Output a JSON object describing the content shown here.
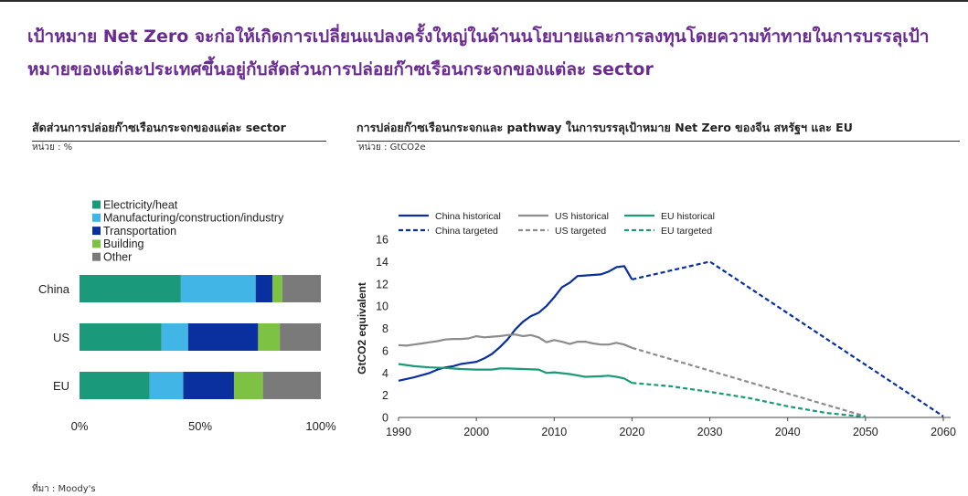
{
  "headline": "เป้าหมาย Net Zero จะก่อให้เกิดการเปลี่ยนแปลงครั้งใหญ่ในด้านนโยบายและการลงทุนโดยความท้าทายในการบรรลุเป้าหมายของแต่ละประเทศขึ้นอยู่กับสัดส่วนการปล่อยก๊าซเรือนกระจกของแต่ละ sector",
  "left_panel": {
    "title": "สัดส่วนการปล่อยก๊าซเรือนกระจกของแต่ละ sector",
    "unit": "หน่วย : %"
  },
  "right_panel": {
    "title": "การปล่อยก๊าซเรือนกระจกและ pathway ในการบรรลุเป้าหมาย Net Zero ของจีน สหรัฐฯ และ EU",
    "unit": "หน่วย : GtCO2e"
  },
  "source": "ที่มา : Moody's",
  "chart_data": [
    {
      "type": "bar",
      "orientation": "horizontal",
      "stacked": true,
      "categories": [
        "China",
        "US",
        "EU"
      ],
      "series": [
        {
          "name": "Electricity/heat",
          "color": "#1a9a7a",
          "values": [
            42,
            34,
            29
          ]
        },
        {
          "name": "Manufacturing/construction/industry",
          "color": "#41b6e6",
          "values": [
            31,
            11,
            14
          ]
        },
        {
          "name": "Transportation",
          "color": "#0a2f9e",
          "values": [
            7,
            29,
            21
          ]
        },
        {
          "name": "Building",
          "color": "#7dc242",
          "values": [
            4,
            9,
            12
          ]
        },
        {
          "name": "Other",
          "color": "#7a7a7a",
          "values": [
            16,
            17,
            24
          ]
        }
      ],
      "xlim": [
        0,
        100
      ],
      "xticks": [
        "0%",
        "50%",
        "100%"
      ],
      "legend": "top-left"
    },
    {
      "type": "line",
      "ylabel": "GtCO2 equivalent",
      "xlim": [
        1990,
        2060
      ],
      "ylim": [
        0,
        16
      ],
      "xticks": [
        1990,
        2000,
        2010,
        2020,
        2030,
        2040,
        2050,
        2060
      ],
      "yticks": [
        0,
        2,
        4,
        6,
        8,
        10,
        12,
        14,
        16
      ],
      "legend": "top",
      "series": [
        {
          "name": "China historical",
          "color": "#0a2f9e",
          "dash": false,
          "points": [
            [
              1990,
              3.3
            ],
            [
              1992,
              3.6
            ],
            [
              1994,
              4.0
            ],
            [
              1995,
              4.3
            ],
            [
              1996,
              4.5
            ],
            [
              1997,
              4.6
            ],
            [
              1998,
              4.8
            ],
            [
              1999,
              4.9
            ],
            [
              2000,
              5.0
            ],
            [
              2001,
              5.3
            ],
            [
              2002,
              5.7
            ],
            [
              2003,
              6.3
            ],
            [
              2004,
              7.0
            ],
            [
              2005,
              7.9
            ],
            [
              2006,
              8.6
            ],
            [
              2007,
              9.1
            ],
            [
              2008,
              9.4
            ],
            [
              2009,
              10.0
            ],
            [
              2010,
              10.8
            ],
            [
              2011,
              11.7
            ],
            [
              2012,
              12.1
            ],
            [
              2013,
              12.7
            ],
            [
              2014,
              12.75
            ],
            [
              2015,
              12.8
            ],
            [
              2016,
              12.85
            ],
            [
              2017,
              13.1
            ],
            [
              2018,
              13.5
            ],
            [
              2019,
              13.6
            ],
            [
              2020,
              12.4
            ]
          ]
        },
        {
          "name": "China targeted",
          "color": "#0a2f9e",
          "dash": true,
          "points": [
            [
              2020,
              12.4
            ],
            [
              2030,
              14.0
            ],
            [
              2060,
              0.1
            ]
          ]
        },
        {
          "name": "US historical",
          "color": "#8c8c8c",
          "dash": false,
          "points": [
            [
              1990,
              6.5
            ],
            [
              1991,
              6.45
            ],
            [
              1992,
              6.55
            ],
            [
              1993,
              6.65
            ],
            [
              1994,
              6.75
            ],
            [
              1995,
              6.85
            ],
            [
              1996,
              7.0
            ],
            [
              1997,
              7.05
            ],
            [
              1998,
              7.05
            ],
            [
              1999,
              7.1
            ],
            [
              2000,
              7.3
            ],
            [
              2001,
              7.2
            ],
            [
              2002,
              7.25
            ],
            [
              2003,
              7.3
            ],
            [
              2004,
              7.4
            ],
            [
              2005,
              7.45
            ],
            [
              2006,
              7.3
            ],
            [
              2007,
              7.4
            ],
            [
              2008,
              7.2
            ],
            [
              2009,
              6.75
            ],
            [
              2010,
              6.95
            ],
            [
              2011,
              6.8
            ],
            [
              2012,
              6.6
            ],
            [
              2013,
              6.8
            ],
            [
              2014,
              6.8
            ],
            [
              2015,
              6.65
            ],
            [
              2016,
              6.55
            ],
            [
              2017,
              6.55
            ],
            [
              2018,
              6.7
            ],
            [
              2019,
              6.55
            ],
            [
              2020,
              6.25
            ]
          ]
        },
        {
          "name": "US targeted",
          "color": "#8c8c8c",
          "dash": true,
          "points": [
            [
              2020,
              6.25
            ],
            [
              2050,
              0.1
            ]
          ]
        },
        {
          "name": "EU historical",
          "color": "#1a9a7a",
          "dash": false,
          "points": [
            [
              1990,
              4.8
            ],
            [
              1992,
              4.6
            ],
            [
              1994,
              4.5
            ],
            [
              1996,
              4.45
            ],
            [
              1998,
              4.35
            ],
            [
              2000,
              4.3
            ],
            [
              2002,
              4.3
            ],
            [
              2003,
              4.4
            ],
            [
              2004,
              4.4
            ],
            [
              2006,
              4.35
            ],
            [
              2008,
              4.3
            ],
            [
              2009,
              4.0
            ],
            [
              2010,
              4.05
            ],
            [
              2012,
              3.9
            ],
            [
              2014,
              3.65
            ],
            [
              2016,
              3.7
            ],
            [
              2017,
              3.75
            ],
            [
              2018,
              3.65
            ],
            [
              2019,
              3.5
            ],
            [
              2020,
              3.1
            ]
          ]
        },
        {
          "name": "EU targeted",
          "color": "#1a9a7a",
          "dash": true,
          "points": [
            [
              2020,
              3.1
            ],
            [
              2025,
              2.8
            ],
            [
              2030,
              2.3
            ],
            [
              2035,
              1.75
            ],
            [
              2040,
              1.0
            ],
            [
              2045,
              0.4
            ],
            [
              2050,
              0.05
            ]
          ]
        }
      ]
    }
  ]
}
